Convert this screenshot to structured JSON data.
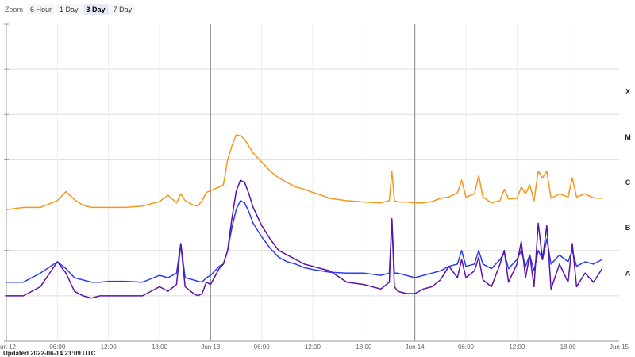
{
  "zoom": {
    "label": "Zoom",
    "options": [
      "6 Hour",
      "1 Day",
      "3 Day",
      "7 Day"
    ],
    "selected": "3 Day"
  },
  "footer": {
    "updated": "Updated 2022-06-14 21:09 UTC"
  },
  "chart_data": {
    "type": "line",
    "title": "",
    "xlabel": "",
    "ylabel": "",
    "xlim": [
      0,
      72
    ],
    "ylim": [
      -9,
      -2
    ],
    "y_scale": "log",
    "grid": true,
    "x_ticks": [
      {
        "x": 0,
        "label": "Jun 12"
      },
      {
        "x": 6,
        "label": "06:00"
      },
      {
        "x": 12,
        "label": "12:00"
      },
      {
        "x": 18,
        "label": "18:00"
      },
      {
        "x": 24,
        "label": "Jun 13"
      },
      {
        "x": 30,
        "label": "06:00"
      },
      {
        "x": 36,
        "label": "12:00"
      },
      {
        "x": 42,
        "label": "18:00"
      },
      {
        "x": 48,
        "label": "Jun 14"
      },
      {
        "x": 54,
        "label": "06:00"
      },
      {
        "x": 60,
        "label": "12:00"
      },
      {
        "x": 66,
        "label": "18:00"
      },
      {
        "x": 72,
        "label": "Jun 15"
      }
    ],
    "day_lines": [
      24,
      48
    ],
    "class_labels": [
      {
        "y": -3.5,
        "label": "X"
      },
      {
        "y": -4.5,
        "label": "M"
      },
      {
        "y": -5.5,
        "label": "C"
      },
      {
        "y": -6.5,
        "label": "B"
      },
      {
        "y": -7.5,
        "label": "A"
      }
    ],
    "series": [
      {
        "color": "#f5961e",
        "x": [
          0,
          2,
          4,
          6,
          7,
          8,
          9,
          10,
          11,
          12,
          14,
          16,
          18,
          19,
          20,
          20.5,
          21,
          22,
          22.5,
          23,
          23.5,
          24,
          25,
          25.5,
          26,
          26.5,
          27,
          27.5,
          28,
          28.5,
          29,
          30,
          31,
          32,
          33,
          34,
          35,
          36,
          37,
          38,
          40,
          42,
          44,
          45,
          45.3,
          45.6,
          46,
          47,
          48,
          49,
          50,
          51,
          52,
          53,
          53.5,
          54,
          55,
          55.5,
          56,
          57,
          58,
          58.5,
          59,
          60,
          60.5,
          61,
          61.5,
          62,
          62.5,
          63,
          63.5,
          64,
          65,
          66,
          66.5,
          67,
          68,
          69,
          70
        ],
        "y": [
          -6.1,
          -6.05,
          -6.05,
          -5.9,
          -5.7,
          -5.88,
          -6.0,
          -6.05,
          -6.05,
          -6.05,
          -6.05,
          -6.02,
          -5.92,
          -5.78,
          -5.95,
          -5.75,
          -5.9,
          -6.0,
          -6.02,
          -5.9,
          -5.72,
          -5.68,
          -5.6,
          -5.55,
          -5.0,
          -4.7,
          -4.45,
          -4.47,
          -4.55,
          -4.7,
          -4.85,
          -5.05,
          -5.25,
          -5.4,
          -5.5,
          -5.6,
          -5.65,
          -5.72,
          -5.78,
          -5.85,
          -5.9,
          -5.93,
          -5.95,
          -5.9,
          -5.25,
          -5.9,
          -5.93,
          -5.93,
          -5.95,
          -5.95,
          -5.92,
          -5.85,
          -5.82,
          -5.73,
          -5.45,
          -5.82,
          -5.75,
          -5.35,
          -5.82,
          -5.95,
          -5.9,
          -5.65,
          -5.86,
          -5.85,
          -5.6,
          -5.75,
          -5.55,
          -5.9,
          -5.25,
          -5.4,
          -5.25,
          -5.85,
          -5.75,
          -5.82,
          -5.4,
          -5.82,
          -5.75,
          -5.84,
          -5.85
        ]
      },
      {
        "color": "#2a3ef5",
        "x": [
          0,
          2,
          4,
          6,
          7,
          8,
          9,
          10,
          11,
          12,
          14,
          16,
          18,
          19,
          20,
          20.5,
          21,
          22,
          22.5,
          23,
          23.5,
          24,
          25,
          25.5,
          26,
          26.5,
          27,
          27.5,
          28,
          28.5,
          29,
          30,
          31,
          32,
          33,
          34,
          35,
          36,
          37,
          38,
          40,
          42,
          44,
          45,
          45.3,
          45.6,
          46,
          47,
          48,
          49,
          50,
          51,
          52,
          53,
          53.5,
          54,
          55,
          55.5,
          56,
          57,
          58,
          58.5,
          59,
          60,
          60.5,
          61,
          61.5,
          62,
          62.5,
          63,
          63.5,
          64,
          65,
          66,
          66.5,
          67,
          68,
          69,
          70
        ],
        "y": [
          -7.7,
          -7.7,
          -7.5,
          -7.25,
          -7.4,
          -7.6,
          -7.65,
          -7.7,
          -7.7,
          -7.68,
          -7.68,
          -7.7,
          -7.55,
          -7.6,
          -7.5,
          -6.85,
          -7.6,
          -7.65,
          -7.68,
          -7.7,
          -7.6,
          -7.55,
          -7.35,
          -7.3,
          -7.0,
          -6.5,
          -6.1,
          -5.9,
          -5.95,
          -6.15,
          -6.4,
          -6.7,
          -6.95,
          -7.15,
          -7.25,
          -7.3,
          -7.38,
          -7.42,
          -7.45,
          -7.48,
          -7.5,
          -7.5,
          -7.55,
          -7.5,
          -6.3,
          -7.5,
          -7.5,
          -7.55,
          -7.6,
          -7.55,
          -7.5,
          -7.45,
          -7.35,
          -7.3,
          -7.0,
          -7.35,
          -7.3,
          -7.0,
          -7.3,
          -7.4,
          -7.2,
          -7.05,
          -7.4,
          -7.2,
          -7.0,
          -7.35,
          -7.1,
          -7.45,
          -7.0,
          -7.2,
          -6.75,
          -7.3,
          -7.1,
          -7.25,
          -7.0,
          -7.35,
          -7.25,
          -7.3,
          -7.2
        ]
      },
      {
        "color": "#5a12a8",
        "x": [
          0,
          2,
          4,
          6,
          7,
          8,
          9,
          10,
          11,
          12,
          14,
          16,
          18,
          19,
          20,
          20.5,
          21,
          22,
          22.5,
          23,
          23.5,
          24,
          25,
          25.5,
          26,
          26.5,
          27,
          27.5,
          28,
          28.5,
          29,
          30,
          31,
          32,
          33,
          34,
          35,
          36,
          37,
          38,
          40,
          42,
          44,
          45,
          45.3,
          45.6,
          46,
          47,
          48,
          49,
          50,
          51,
          52,
          53,
          53.5,
          54,
          55,
          55.5,
          56,
          57,
          58,
          58.5,
          59,
          60,
          60.5,
          61,
          61.5,
          62,
          62.5,
          63,
          63.5,
          64,
          65,
          66,
          66.5,
          67,
          68,
          69,
          70
        ],
        "y": [
          -8.0,
          -8.0,
          -7.8,
          -7.25,
          -7.5,
          -7.9,
          -8.0,
          -8.05,
          -8.0,
          -8.0,
          -8.0,
          -8.0,
          -7.8,
          -7.9,
          -7.75,
          -6.85,
          -7.8,
          -7.95,
          -8.0,
          -7.95,
          -7.7,
          -7.75,
          -7.4,
          -7.3,
          -7.0,
          -6.3,
          -5.7,
          -5.45,
          -5.5,
          -5.75,
          -6.05,
          -6.45,
          -6.75,
          -7.0,
          -7.1,
          -7.2,
          -7.3,
          -7.35,
          -7.4,
          -7.45,
          -7.7,
          -7.75,
          -7.85,
          -7.7,
          -6.3,
          -7.8,
          -7.9,
          -7.95,
          -7.95,
          -7.85,
          -7.8,
          -7.65,
          -7.35,
          -7.6,
          -7.2,
          -7.6,
          -7.45,
          -7.15,
          -7.65,
          -7.8,
          -7.3,
          -7.0,
          -7.7,
          -7.3,
          -6.8,
          -7.6,
          -7.1,
          -7.8,
          -6.4,
          -7.2,
          -6.45,
          -7.85,
          -7.3,
          -7.7,
          -6.85,
          -7.8,
          -7.5,
          -7.7,
          -7.4
        ]
      }
    ]
  }
}
